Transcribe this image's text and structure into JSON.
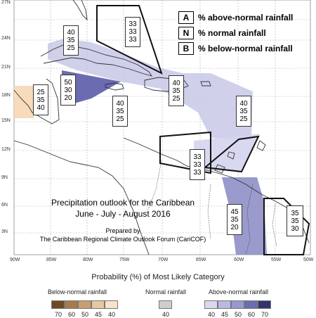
{
  "map": {
    "latitude_labels": [
      "27N",
      "24N",
      "21N",
      "18N",
      "15N",
      "12N",
      "9N",
      "6N",
      "3N"
    ],
    "longitude_labels": [
      "90W",
      "85W",
      "80W",
      "75W",
      "70W",
      "65W",
      "60W",
      "55W",
      "50W"
    ]
  },
  "key": {
    "items": [
      {
        "letter": "A",
        "text": "% above-normal rainfall"
      },
      {
        "letter": "N",
        "text": "% normal rainfall"
      },
      {
        "letter": "B",
        "text": "% below-normal rainfall"
      }
    ]
  },
  "regions": [
    {
      "name": "bahamas",
      "values": [
        "33",
        "33",
        "33"
      ]
    },
    {
      "name": "cuba",
      "values": [
        "40",
        "35",
        "25"
      ]
    },
    {
      "name": "jamaica-caribbean",
      "values": [
        "50",
        "30",
        "20"
      ]
    },
    {
      "name": "belize",
      "values": [
        "25",
        "35",
        "40"
      ]
    },
    {
      "name": "central-caribbean",
      "values": [
        "40",
        "35",
        "25"
      ]
    },
    {
      "name": "hispaniola",
      "values": [
        "40",
        "35",
        "25"
      ]
    },
    {
      "name": "eastern-caribbean",
      "values": [
        "40",
        "35",
        "25"
      ]
    },
    {
      "name": "southern-islands",
      "values": [
        "33",
        "33",
        "33"
      ]
    },
    {
      "name": "guyana",
      "values": [
        "45",
        "35",
        "20"
      ]
    },
    {
      "name": "suriname",
      "values": [
        "35",
        "35",
        "30"
      ]
    }
  ],
  "title": {
    "line1": "Precipitation outlook for the Caribbean",
    "line2": "June - July - August 2016",
    "prepared": "Prepared by",
    "forum": "The Caribbean Regional Climate Outlook Forum (CariCOF)"
  },
  "legend": {
    "title": "Probability (%) of Most Likely Category",
    "below_label": "Below-normal rainfall",
    "normal_label": "Normal rainfall",
    "above_label": "Above-normal rainfall",
    "below_ticks": [
      "70",
      "60",
      "50",
      "45",
      "40"
    ],
    "normal_ticks": [
      "40"
    ],
    "above_ticks": [
      "40",
      "45",
      "50",
      "60",
      "70"
    ],
    "colors": {
      "below": [
        "#6e4a24",
        "#a87b4a",
        "#c99f70",
        "#e6c8a0",
        "#f7e3c9"
      ],
      "normal": [
        "#cdcdcd"
      ],
      "above": [
        "#d8d8f0",
        "#b9b9e3",
        "#9898cf",
        "#6c6cb0",
        "#33336e"
      ]
    }
  }
}
